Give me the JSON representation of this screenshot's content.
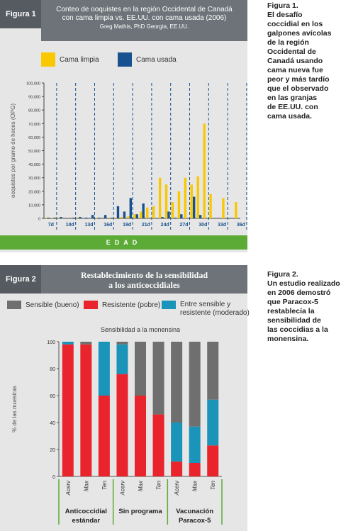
{
  "figure1": {
    "label": "Figura 1",
    "title_line1": "Conteo de ooquistes en la región Occidental de Canadá",
    "title_line2": "con cama limpia vs. EE.UU. con cama usada (2006)",
    "author": "Greg Mathis, PhD Georgia, EE.UU.",
    "legend_clean": "Cama limpia",
    "legend_used": "Cama usada",
    "xaxis_band": "EDAD",
    "caption_title": "Figura 1.",
    "caption_lines": [
      "El desafío",
      "coccidial en los",
      "galpones avícolas",
      "de la región",
      "Occidental de",
      "Canadá usando",
      "cama nueva fue",
      "peor y más tardío",
      "que el observado",
      "en las granjas",
      "de EE.UU. con",
      "cama usada."
    ]
  },
  "figure2": {
    "label": "Figura 2",
    "title_line1": "Restablecimiento de la sensibilidad",
    "title_line2": "a los anticoccidiales",
    "legend_sensible": "Sensible (bueno)",
    "legend_resistente": "Resistente (pobre)",
    "legend_entre_1": "Entre sensible y",
    "legend_entre_2": "resistente (moderado)",
    "group_1a": "Anticoccidial",
    "group_1b": "estándar",
    "group_2": "Sin programa",
    "group_3a": "Vacunación",
    "group_3b": "Paracox-5",
    "caption_title": "Figura 2.",
    "caption_lines": [
      "Un estudio realizado",
      "en 2006 demostró",
      "que Paracox-5",
      "restablecía la",
      "sensibilidad de",
      "las coccidias a la",
      "monensina."
    ]
  },
  "colors": {
    "clean": "#f9c800",
    "used": "#17518f",
    "sensible": "#6f6f6f",
    "resistente": "#e9242c",
    "entre": "#1b94b9",
    "green": "#5bab36",
    "panel": "#e6e6e6"
  },
  "chart_data": [
    {
      "type": "bar",
      "title": "Conteo de ooquistes en la región Occidental de Canadá con cama limpia vs. EE.UU. con cama usada (2006)",
      "xlabel": "EDAD",
      "ylabel": "ooquistes por gramo de heces (OPG)",
      "ylim": [
        0,
        100000
      ],
      "yticks": [
        "0",
        "10,000",
        "20,000",
        "30,000",
        "40,000",
        "50,000",
        "60,000",
        "70,000",
        "80,000",
        "90,000",
        "100,000"
      ],
      "xtick_labels": [
        "7d",
        "10d",
        "13d",
        "16d",
        "19d",
        "21d",
        "24d",
        "27d",
        "30d",
        "33d",
        "36d"
      ],
      "categories": [
        "6",
        "7",
        "8",
        "9",
        "10",
        "11",
        "12",
        "13",
        "14",
        "15",
        "16",
        "17",
        "18",
        "19",
        "20",
        "21",
        "22",
        "23",
        "24",
        "25",
        "26",
        "27",
        "28",
        "29",
        "30",
        "31",
        "32",
        "33",
        "34",
        "35",
        "36"
      ],
      "series": [
        {
          "name": "Cama limpia",
          "values": [
            500,
            500,
            500,
            0,
            0,
            500,
            0,
            0,
            500,
            0,
            500,
            500,
            1000,
            1500,
            3000,
            5000,
            8000,
            9000,
            30000,
            25000,
            12000,
            20000,
            30000,
            25000,
            31000,
            70000,
            18000,
            0,
            15000,
            0,
            12000
          ]
        },
        {
          "name": "Cama usada",
          "values": [
            500,
            500,
            1000,
            0,
            500,
            1000,
            500,
            2500,
            500,
            2500,
            500,
            9000,
            5000,
            15000,
            3000,
            11000,
            0,
            0,
            1000,
            5000,
            500,
            3000,
            0,
            16000,
            2500,
            0,
            0,
            0,
            0,
            0,
            0
          ]
        }
      ]
    },
    {
      "type": "bar",
      "title": "Sensibilidad a la monensina",
      "ylabel": "% de las muestras",
      "ylim": [
        0,
        100
      ],
      "yticks": [
        "0",
        "20",
        "40",
        "60",
        "80",
        "100"
      ],
      "categories": [
        "Acerv",
        "Max",
        "Ten",
        "Acerv",
        "Max",
        "Ten",
        "Acerv",
        "Max",
        "Ten"
      ],
      "stacked": true,
      "series": [
        {
          "name": "Resistente (pobre)",
          "values": [
            98,
            98,
            60,
            76,
            60,
            46,
            11,
            10,
            23
          ]
        },
        {
          "name": "Entre sensible y resistente (moderado)",
          "values": [
            2,
            0,
            40,
            22,
            0,
            0,
            29,
            27,
            34
          ]
        },
        {
          "name": "Sensible (bueno)",
          "values": [
            0,
            2,
            0,
            2,
            40,
            54,
            60,
            63,
            43
          ]
        }
      ]
    }
  ]
}
